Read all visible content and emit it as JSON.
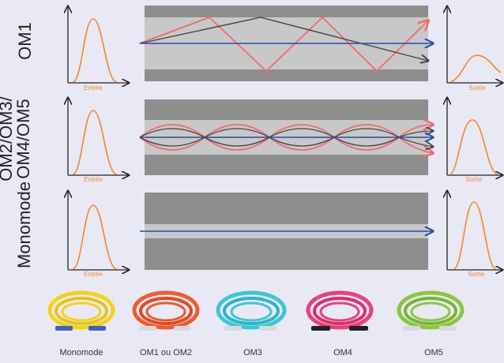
{
  "rows": [
    {
      "label_lines": [
        "OM1"
      ],
      "input_label": "Entrée",
      "output_label": "Sortie"
    },
    {
      "label_lines": [
        "OM2/OM3/",
        "OM4/OM5"
      ],
      "input_label": "Entrée",
      "output_label": "Sortie"
    },
    {
      "label_lines": [
        "Monomode"
      ],
      "input_label": "Entrée",
      "output_label": "Sortie"
    }
  ],
  "cables": [
    {
      "caption": "Monomode",
      "color": "#f2d31c"
    },
    {
      "caption": "OM1 ou OM2",
      "color": "#f05a2e"
    },
    {
      "caption": "OM3",
      "color": "#3cc6d8"
    },
    {
      "caption": "OM4",
      "color": "#ea3f7a"
    },
    {
      "caption": "OM5",
      "color": "#8cc63f"
    }
  ],
  "colors": {
    "background": "#e9e9f6",
    "fiber_cladding": "#8e8e8e",
    "fiber_core": "#c8c8c8",
    "ray_red": "#f06c6c",
    "ray_dark": "#444444",
    "ray_blue": "#1f4fa8",
    "pulse_orange": "#f28a22",
    "label_orange": "#f28a22"
  }
}
